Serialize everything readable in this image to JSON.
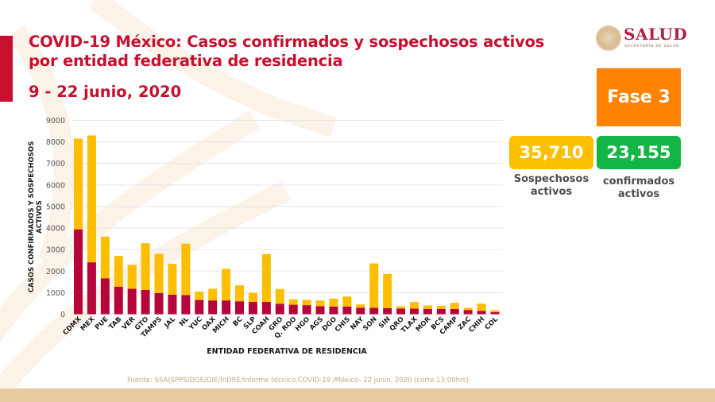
{
  "header": {
    "title": "COVID-19 México: Casos confirmados y sospechosos activos por entidad federativa de residencia",
    "date_range": "9 - 22 junio, 2020"
  },
  "logo": {
    "name": "SALUD",
    "subtitle": "SECRETARÍA DE SALUD"
  },
  "phase": {
    "label": "Fase 3",
    "color": "#ff8200"
  },
  "kpis": [
    {
      "value": "35,710",
      "label_line1": "Sospechosos",
      "label_line2": "activos",
      "color": "#fdc000"
    },
    {
      "value": "23,155",
      "label_line1": "confirmados",
      "label_line2": "activos",
      "color": "#13b546"
    }
  ],
  "source": "Fuente: SSA(SPPS/DGE/DIE/InDRE/Informe técnico.COVID-19 /México- 22 junio, 2020 (corte 13:00hrs)",
  "chart_data": {
    "type": "bar",
    "stacked": true,
    "title": "COVID-19 México: Casos confirmados y sospechosos activos por entidad federativa de residencia",
    "xlabel": "ENTIDAD FEDERATIVA DE RESIDENCIA",
    "ylabel": "CASOS CONFIRMADOS Y SOSPECHOSOS ACTIVOS",
    "ylim": [
      0,
      9000
    ],
    "yticks": [
      0,
      1000,
      2000,
      3000,
      4000,
      5000,
      6000,
      7000,
      8000,
      9000
    ],
    "grid": true,
    "categories": [
      "CDMX",
      "MEX",
      "PUE",
      "TAB",
      "VER",
      "GTO",
      "TAMPS",
      "JAL",
      "NL",
      "YUC",
      "OAX",
      "MICH",
      "BC",
      "SLP",
      "COAH",
      "GRO",
      "Q. ROO",
      "HGO",
      "AGS",
      "DGO",
      "CHIS",
      "NAY",
      "SON",
      "SIN",
      "QRO",
      "TLAX",
      "MOR",
      "BCS",
      "CAMP",
      "ZAC",
      "CHIH",
      "COL"
    ],
    "series": [
      {
        "name": "Confirmados activos",
        "color": "#b5053a",
        "values": [
          3940,
          2410,
          1670,
          1280,
          1180,
          1130,
          985,
          910,
          890,
          660,
          640,
          640,
          600,
          570,
          575,
          480,
          440,
          420,
          370,
          355,
          355,
          305,
          295,
          285,
          260,
          260,
          245,
          245,
          245,
          195,
          160,
          100
        ]
      },
      {
        "name": "Sospechosos activos",
        "color": "#fdbe00",
        "values": [
          4215,
          5890,
          1935,
          1425,
          1110,
          2165,
          1820,
          1425,
          2385,
          390,
          540,
          1465,
          740,
          425,
          2220,
          690,
          250,
          245,
          270,
          370,
          465,
          150,
          2065,
          1585,
          110,
          305,
          160,
          150,
          285,
          100,
          330,
          85
        ]
      }
    ],
    "totals": [
      8155,
      8300,
      3605,
      2705,
      2290,
      3295,
      2805,
      2335,
      3275,
      1050,
      1180,
      2105,
      1340,
      995,
      2795,
      1170,
      690,
      665,
      640,
      725,
      820,
      455,
      2360,
      1870,
      370,
      565,
      405,
      395,
      530,
      295,
      490,
      185
    ]
  }
}
